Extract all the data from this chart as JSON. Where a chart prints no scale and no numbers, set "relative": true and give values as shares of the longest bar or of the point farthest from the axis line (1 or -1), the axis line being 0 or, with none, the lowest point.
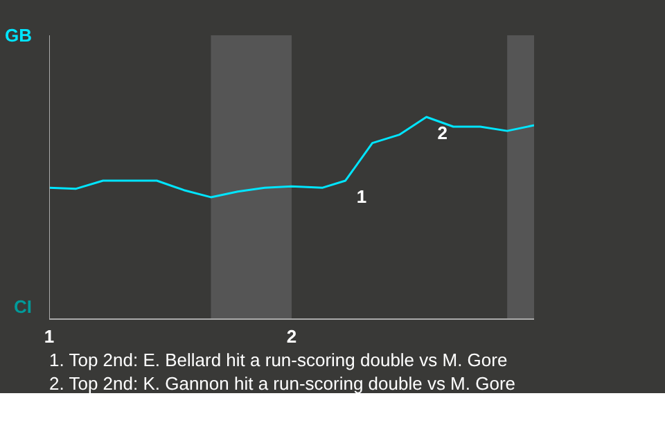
{
  "chart_data": {
    "type": "line",
    "relative": true,
    "x": [
      1,
      1.111,
      1.222,
      1.444,
      1.556,
      1.667,
      1.778,
      1.889,
      2,
      2.128,
      2.222,
      2.333,
      2.444,
      2.556,
      2.667,
      2.778,
      2.889,
      3
    ],
    "series": [
      {
        "color": "#00e5ff",
        "values": [
          0.65,
          0.645,
          0.685,
          0.685,
          0.638,
          0.603,
          0.631,
          0.65,
          0.657,
          0.65,
          0.685,
          0.871,
          0.912,
          1,
          0.952,
          0.952,
          0.931,
          0.959
        ]
      }
    ],
    "xlim": [
      1,
      3
    ],
    "xticks": [
      1,
      2
    ],
    "marker": "none",
    "line_style": "solid",
    "bands": [
      {
        "axis": "x",
        "from": 1.667,
        "to": 2,
        "color": "#555555"
      },
      {
        "axis": "x",
        "from": 2.889,
        "to": 3,
        "color": "#555555"
      }
    ],
    "annotations": [
      "GB",
      "CI",
      {
        "text": "1",
        "x": 2.222,
        "y": 0.685
      },
      {
        "text": "2",
        "x": 2.556,
        "y": 1
      },
      "1. Top 2nd: E. Bellard hit a run-scoring double vs M. Gore",
      "2. Top 2nd: K. Gannon hit a run-scoring double vs M. Gore"
    ]
  }
}
